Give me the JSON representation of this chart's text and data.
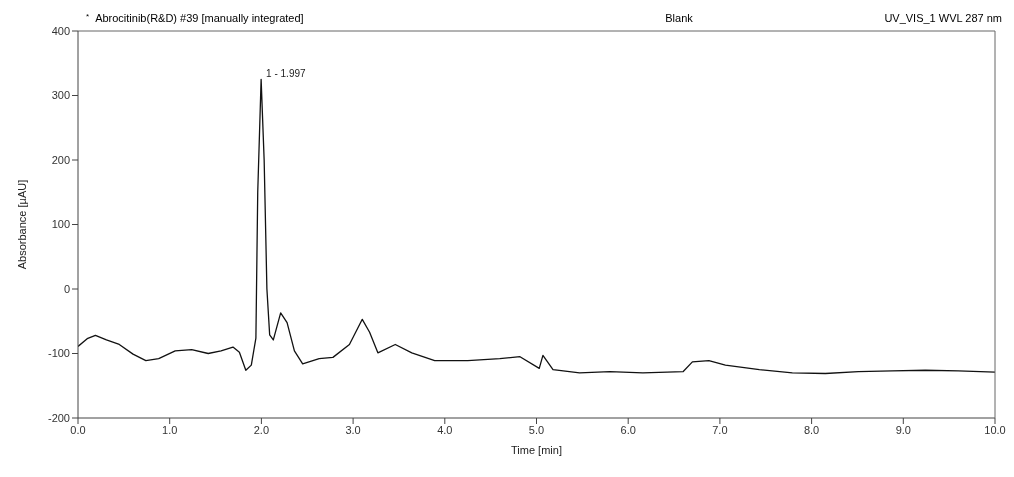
{
  "chart_data": {
    "type": "line",
    "title": "Abrocitinib(R&D) #39 [manually integrated]",
    "subtitle": "Blank",
    "xlabel": "Time [min]",
    "ylabel": "Absorbance [µAU]",
    "annotations": [
      "*",
      "UV_VIS_1 WVL 287 nm",
      {
        "text": "1 - 1.997",
        "x": 1.997,
        "y": 325
      }
    ],
    "xlim": [
      0,
      10
    ],
    "xticks": [
      {
        "value": 0,
        "label": "0.0"
      },
      {
        "value": 1,
        "label": "1.0"
      },
      {
        "value": 2,
        "label": "2.0"
      },
      {
        "value": 3,
        "label": "3.0"
      },
      {
        "value": 4,
        "label": "4.0"
      },
      {
        "value": 5,
        "label": "5.0"
      },
      {
        "value": 6,
        "label": "6.0"
      },
      {
        "value": 7,
        "label": "7.0"
      },
      {
        "value": 8,
        "label": "8.0"
      },
      {
        "value": 9,
        "label": "9.0"
      },
      {
        "value": 10,
        "label": "10.0"
      }
    ],
    "ylim": [
      -200,
      400
    ],
    "yticks": [
      -200,
      -100,
      0,
      100,
      200,
      300,
      400
    ],
    "grid": false,
    "marker": "none",
    "line_style": "solid",
    "series": [
      {
        "color": "#111111",
        "x": [
          0,
          0.1,
          0.19,
          0.31,
          0.45,
          0.6,
          0.74,
          0.88,
          1.06,
          1.24,
          1.42,
          1.56,
          1.69,
          1.76,
          1.83,
          1.89,
          1.94,
          1.96,
          1.997,
          2.03,
          2.06,
          2.09,
          2.13,
          2.21,
          2.28,
          2.36,
          2.45,
          2.63,
          2.78,
          2.96,
          3.1,
          3.18,
          3.27,
          3.46,
          3.64,
          3.89,
          4.25,
          4.6,
          4.82,
          5.03,
          5.07,
          5.18,
          5.47,
          5.8,
          6.16,
          6.6,
          6.7,
          6.88,
          7.06,
          7.43,
          7.79,
          8.15,
          8.51,
          8.88,
          9.24,
          9.6,
          10
        ],
        "values": [
          -89,
          -77,
          -72,
          -79,
          -86,
          -101,
          -111,
          -108,
          -96,
          -94,
          -100,
          -96,
          -90,
          -98,
          -126,
          -118,
          -76,
          150,
          325,
          200,
          0,
          -71,
          -79,
          -37,
          -52,
          -96,
          -116,
          -108,
          -106,
          -86,
          -47,
          -67,
          -99,
          -86,
          -99,
          -111,
          -111,
          -108,
          -105,
          -123,
          -103,
          -125,
          -130,
          -128,
          -130,
          -128,
          -113,
          -111,
          -118,
          -125,
          -130,
          -131,
          -128,
          -127,
          -126,
          -127,
          -129
        ]
      }
    ]
  }
}
